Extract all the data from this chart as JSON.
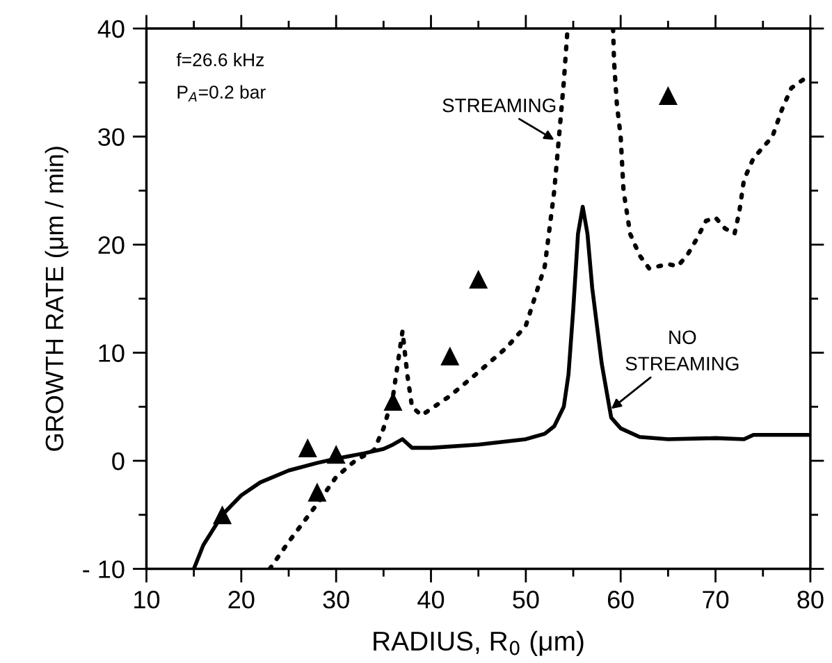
{
  "chart_data": {
    "type": "line",
    "xlabel": "RADIUS, R$_{0}$ (μm)",
    "ylabel": "GROWTH RATE (μm / min)",
    "xlim": [
      10,
      80
    ],
    "ylim": [
      -10,
      40
    ],
    "xticks": [
      10,
      20,
      30,
      40,
      50,
      60,
      70,
      80
    ],
    "yticks": [
      {
        "value": -10,
        "label": "- 10"
      },
      0,
      10,
      20,
      30,
      40
    ],
    "grid": false,
    "legend": false,
    "series": [
      {
        "line_style": "solid",
        "color": "#000000",
        "x": [
          15,
          16,
          18,
          20,
          22,
          25,
          28,
          30,
          33,
          35,
          36,
          37,
          38,
          40,
          45,
          50,
          52,
          53,
          54,
          54.5,
          55,
          55.5,
          56,
          56.5,
          57,
          58,
          59,
          60,
          62,
          65,
          70,
          73,
          74,
          80
        ],
        "values": [
          -10,
          -7.8,
          -5,
          -3.2,
          -2,
          -0.9,
          -0.2,
          0.2,
          0.7,
          1.1,
          1.5,
          2,
          1.2,
          1.2,
          1.5,
          2,
          2.5,
          3.2,
          5,
          8,
          14,
          21,
          23.5,
          21,
          16,
          9,
          4,
          3,
          2.2,
          2,
          2.1,
          2,
          2.4,
          2.4
        ]
      },
      {
        "line_style": "dotted",
        "color": "#000000",
        "x": [
          23,
          25,
          28,
          30,
          32,
          34,
          35,
          36,
          36.5,
          37,
          37.5,
          38,
          39,
          40,
          42,
          45,
          48,
          50,
          52,
          53,
          53.5,
          54,
          54.4,
          56.5,
          59.2,
          59.3,
          59.6,
          60,
          60.3,
          61,
          62,
          63,
          65,
          66,
          67,
          68,
          69,
          70,
          71,
          72,
          72.5,
          73,
          74,
          76,
          77,
          78,
          79.3,
          80
        ],
        "values": [
          -10,
          -7.5,
          -4,
          -1.5,
          0,
          1,
          3,
          6,
          9,
          12,
          8,
          5,
          4.2,
          4.8,
          6,
          8.2,
          10.5,
          12.5,
          18,
          25,
          30,
          35,
          40,
          null,
          40,
          37,
          33,
          30,
          25,
          21,
          19,
          17.8,
          18.2,
          18,
          19,
          20.5,
          22.2,
          22.5,
          21.5,
          21,
          23,
          26,
          28,
          30,
          32.5,
          34.5,
          35.3,
          34.8
        ]
      },
      {
        "type": "scatter",
        "marker": "triangle",
        "color": "#000000",
        "x": [
          18,
          27,
          28,
          30,
          36,
          42,
          45,
          65
        ],
        "values": [
          -5,
          1.2,
          -2.9,
          0.6,
          5.5,
          9.7,
          16.8,
          33.8
        ]
      }
    ],
    "annotations": [
      "f=26.6 kHz",
      "P$_{A}$=0.2 bar",
      {
        "text": "STREAMING",
        "x": 53,
        "y": 29.7
      },
      {
        "text": "NO\nSTREAMING",
        "x": 59,
        "y": 4.8
      }
    ]
  }
}
